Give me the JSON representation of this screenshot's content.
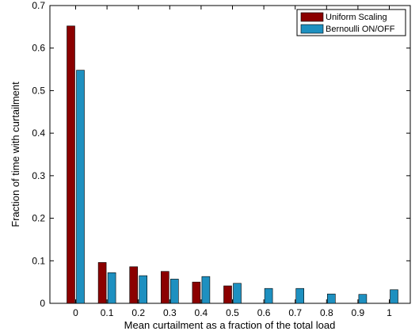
{
  "chart_data": {
    "type": "bar",
    "xlabel": "Mean curtailment as a fraction of the total load",
    "ylabel": "Fraction of time with curtailment",
    "categories": [
      "0",
      "0.1",
      "0.2",
      "0.3",
      "0.4",
      "0.5",
      "0.6",
      "0.7",
      "0.8",
      "0.9",
      "1"
    ],
    "yticks": [
      "0",
      "0.1",
      "0.2",
      "0.3",
      "0.4",
      "0.5",
      "0.6",
      "0.7"
    ],
    "ylim": [
      0,
      0.7
    ],
    "grid": false,
    "legend_position": "top-right",
    "series": [
      {
        "name": "Uniform Scaling",
        "color": "#8b0000",
        "values": [
          0.652,
          0.096,
          0.086,
          0.075,
          0.05,
          0.041,
          0,
          0,
          0,
          0,
          0
        ]
      },
      {
        "name": "Bernoulli ON/OFF",
        "color": "#1e90c0",
        "values": [
          0.548,
          0.072,
          0.065,
          0.057,
          0.063,
          0.047,
          0.035,
          0.035,
          0.022,
          0.021,
          0.032
        ]
      }
    ]
  }
}
